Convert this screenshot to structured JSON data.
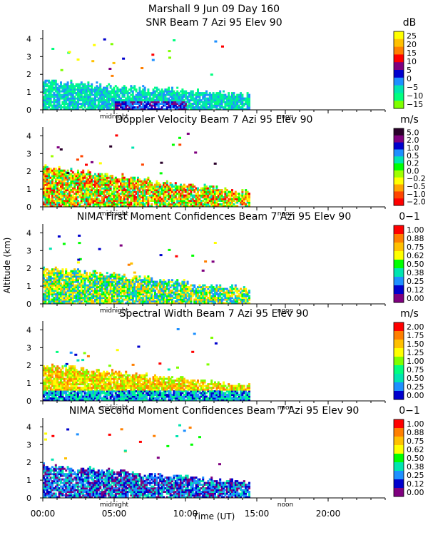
{
  "header": {
    "line1": "Marshall    9 Jun 09 Day 160"
  },
  "axes": {
    "ylabel": "Altitude (km)",
    "xlabel": "Time (UT)",
    "xlim": [
      0,
      24
    ],
    "ylim": [
      0,
      4.5
    ],
    "xticks": [
      0,
      5,
      10,
      15,
      20
    ],
    "xtick_labels": [
      "00:00",
      "05:00",
      "10:00",
      "15:00",
      "20:00"
    ],
    "yticks": [
      0,
      1,
      2,
      3,
      4
    ],
    "marker_midnight": "midnight",
    "marker_noon": "noon",
    "midnight_hour": 5,
    "noon_hour": 17
  },
  "chart_data": [
    {
      "type": "heatmap",
      "title": "SNR Beam 7 Azi  95 Elev 90",
      "units": "dB",
      "colorbar_labels": [
        "25",
        "20",
        "15",
        "10",
        "5",
        "0",
        "−5",
        "−10",
        "−15"
      ],
      "colors": [
        "#ffff00",
        "#ffc000",
        "#ff7f00",
        "#ff0000",
        "#7f007f",
        "#0000cd",
        "#1e90ff",
        "#00e5b0",
        "#00ff7f",
        "#7fff00"
      ],
      "data_extent_hours": [
        0,
        14.4
      ],
      "data_top_km": 1.6
    },
    {
      "type": "heatmap",
      "title": "Doppler Velocity Beam 7 Azi  95 Elev 90",
      "units": "m/s",
      "colorbar_labels": [
        "5.0",
        "2.0",
        "1.0",
        "0.5",
        "0.2",
        "0.0",
        "−0.2",
        "−0.5",
        "−1.0",
        "−2.0"
      ],
      "colors": [
        "#2a002a",
        "#7f007f",
        "#0000cd",
        "#1e90ff",
        "#00e5b0",
        "#00ff00",
        "#a0ff00",
        "#ffff00",
        "#ffa500",
        "#ff4500",
        "#ff0000"
      ],
      "data_extent_hours": [
        0,
        14.4
      ],
      "data_top_km": 2.2
    },
    {
      "type": "heatmap",
      "title": "NIMA First Moment Confidences Beam 7 Azi  95 Elev 90",
      "units": "0−1",
      "colorbar_labels": [
        "1.00",
        "0.88",
        "0.75",
        "0.62",
        "0.50",
        "0.38",
        "0.25",
        "0.12",
        "0.00"
      ],
      "colors": [
        "#ff0000",
        "#ff7f00",
        "#ffc000",
        "#ffff00",
        "#00ff00",
        "#00e5b0",
        "#1e90ff",
        "#0000cd",
        "#7f007f"
      ],
      "data_extent_hours": [
        0,
        14.4
      ],
      "data_top_km": 2.0
    },
    {
      "type": "heatmap",
      "title": "Spectral Width Beam 7 Azi  95 Elev 90",
      "units": "m/s",
      "colorbar_labels": [
        "2.00",
        "1.75",
        "1.50",
        "1.25",
        "1.00",
        "0.75",
        "0.50",
        "0.25",
        "0.00"
      ],
      "colors": [
        "#ff0000",
        "#ff7f00",
        "#ffc000",
        "#ffff00",
        "#7fff00",
        "#00ff7f",
        "#00e5b0",
        "#1e90ff",
        "#0000cd"
      ],
      "data_extent_hours": [
        0,
        14.4
      ],
      "data_top_km": 2.0
    },
    {
      "type": "heatmap",
      "title": "NIMA Second Moment Confidences Beam 7 Azi  95 Elev 90",
      "units": "0−1",
      "colorbar_labels": [
        "1.00",
        "0.88",
        "0.75",
        "0.62",
        "0.50",
        "0.38",
        "0.25",
        "0.12",
        "0.00"
      ],
      "colors": [
        "#ff0000",
        "#ff7f00",
        "#ffc000",
        "#ffff00",
        "#00ff00",
        "#00e5b0",
        "#1e90ff",
        "#0000cd",
        "#7f007f"
      ],
      "data_extent_hours": [
        0,
        14.4
      ],
      "data_top_km": 1.8
    }
  ]
}
